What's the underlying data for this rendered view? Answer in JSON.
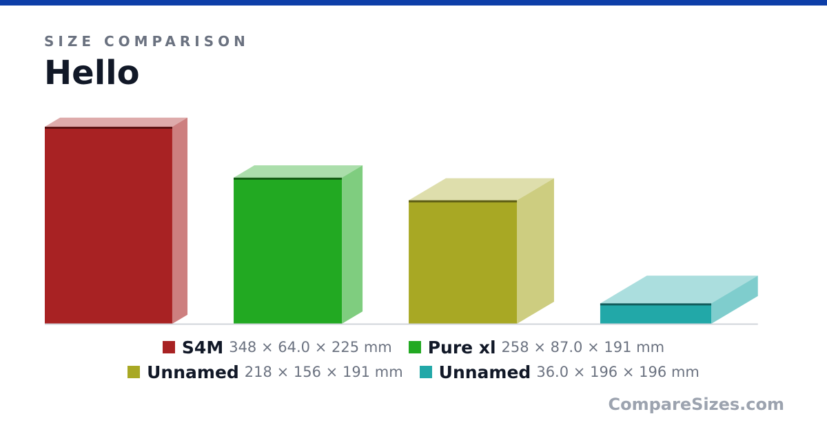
{
  "header": {
    "kicker": "SIZE COMPARISON",
    "title": "Hello"
  },
  "chart_data": {
    "type": "box3d",
    "separator": "×",
    "unit": "mm",
    "series": [
      {
        "name": "S4M",
        "color": "#a82223",
        "values": [
          348,
          64,
          225
        ],
        "value_labels": [
          "348",
          "64.0",
          "225"
        ]
      },
      {
        "name": "Pure xl",
        "color": "#22a922",
        "values": [
          258,
          87,
          191
        ],
        "value_labels": [
          "258",
          "87.0",
          "191"
        ]
      },
      {
        "name": "Unnamed",
        "color": "#a8a824",
        "values": [
          218,
          156,
          191
        ],
        "value_labels": [
          "218",
          "156",
          "191"
        ]
      },
      {
        "name": "Unnamed",
        "color": "#22a8a8",
        "values": [
          36,
          196,
          196
        ],
        "value_labels": [
          "36.0",
          "196",
          "196"
        ]
      }
    ]
  },
  "footer": {
    "brand": "CompareSizes.com"
  }
}
